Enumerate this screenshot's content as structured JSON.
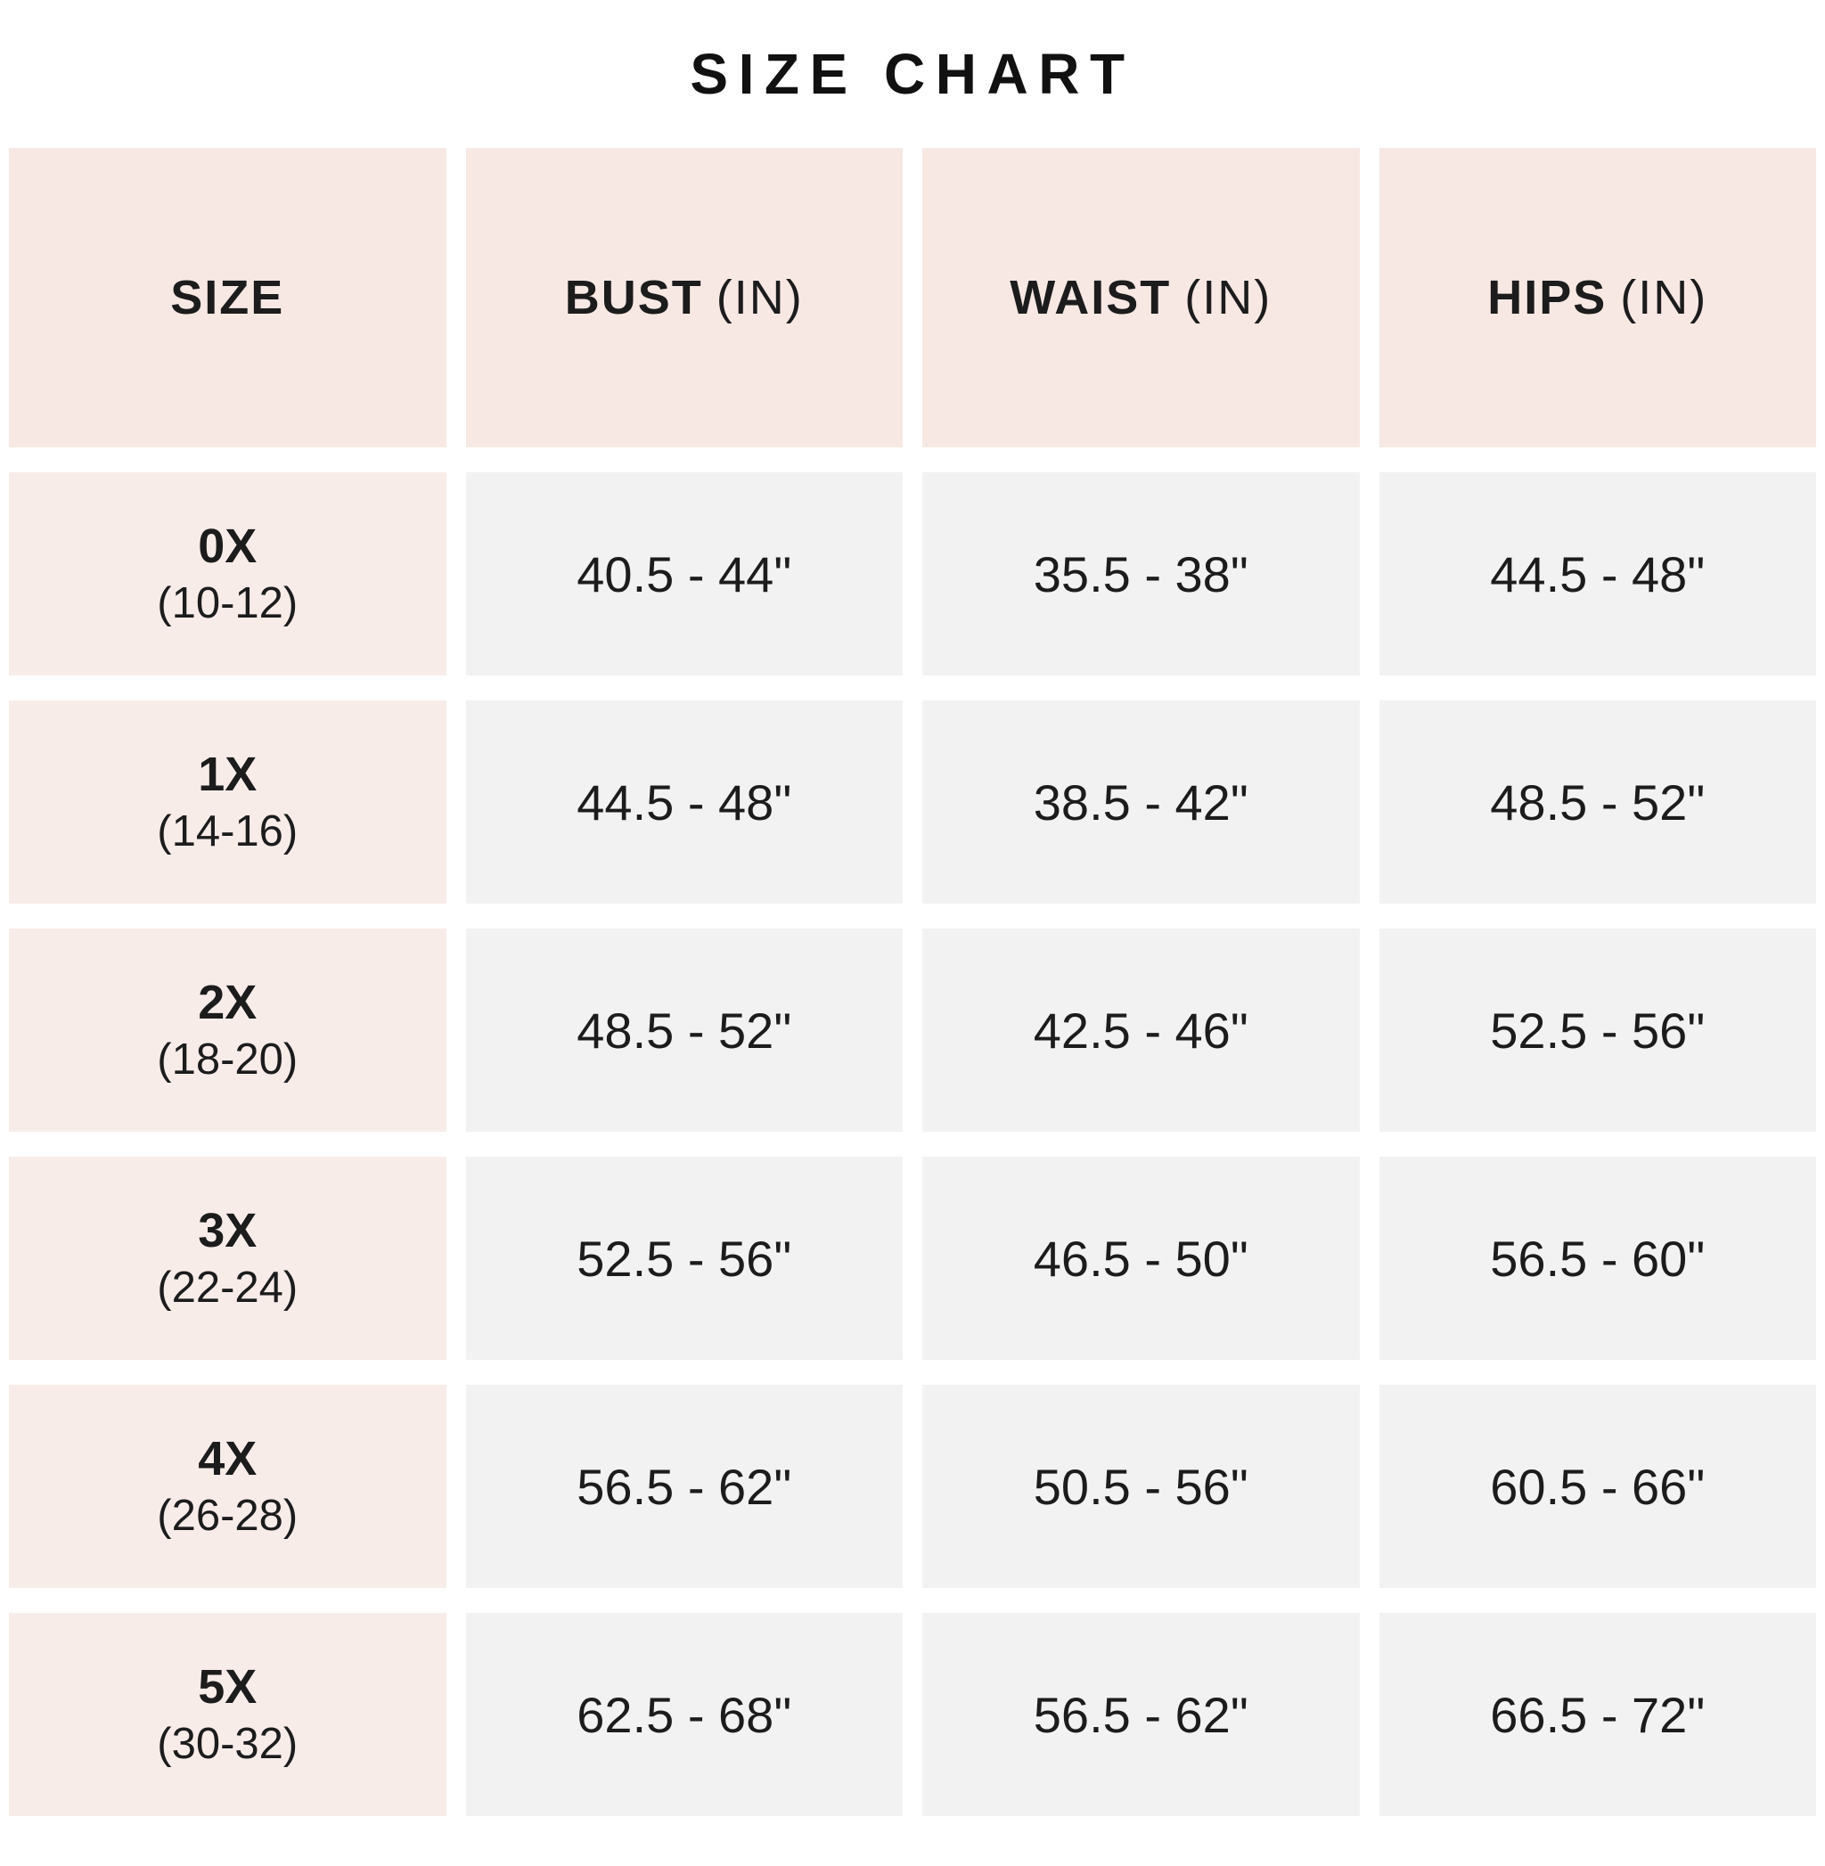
{
  "title": "SIZE CHART",
  "colors": {
    "header_bg": "#f7e8e4",
    "size_col_bg": "#f8ece9",
    "value_bg": "#f2f2f2",
    "text": "#1c1c1c"
  },
  "table": {
    "headers": [
      {
        "label": "SIZE",
        "unit": ""
      },
      {
        "label": "BUST",
        "unit": "(IN)"
      },
      {
        "label": "WAIST",
        "unit": "(IN)"
      },
      {
        "label": "HIPS",
        "unit": "(IN)"
      }
    ],
    "rows": [
      {
        "size": "0X",
        "range": "(10-12)",
        "bust": "40.5 - 44\"",
        "waist": "35.5 - 38\"",
        "hips": "44.5 - 48\""
      },
      {
        "size": "1X",
        "range": "(14-16)",
        "bust": "44.5 - 48\"",
        "waist": "38.5 - 42\"",
        "hips": "48.5 - 52\""
      },
      {
        "size": "2X",
        "range": "(18-20)",
        "bust": "48.5 - 52\"",
        "waist": "42.5 - 46\"",
        "hips": "52.5 - 56\""
      },
      {
        "size": "3X",
        "range": "(22-24)",
        "bust": "52.5 - 56\"",
        "waist": "46.5 - 50\"",
        "hips": "56.5 - 60\""
      },
      {
        "size": "4X",
        "range": "(26-28)",
        "bust": "56.5 - 62\"",
        "waist": "50.5 - 56\"",
        "hips": "60.5 - 66\""
      },
      {
        "size": "5X",
        "range": "(30-32)",
        "bust": "62.5 - 68\"",
        "waist": "56.5 - 62\"",
        "hips": "66.5 - 72\""
      }
    ]
  },
  "chart_data": {
    "type": "table",
    "title": "SIZE CHART",
    "columns": [
      "SIZE",
      "BUST (IN)",
      "WAIST (IN)",
      "HIPS (IN)"
    ],
    "rows": [
      [
        "0X (10-12)",
        "40.5 - 44\"",
        "35.5 - 38\"",
        "44.5 - 48\""
      ],
      [
        "1X (14-16)",
        "44.5 - 48\"",
        "38.5 - 42\"",
        "48.5 - 52\""
      ],
      [
        "2X (18-20)",
        "48.5 - 52\"",
        "42.5 - 46\"",
        "52.5 - 56\""
      ],
      [
        "3X (22-24)",
        "52.5 - 56\"",
        "46.5 - 50\"",
        "56.5 - 60\""
      ],
      [
        "4X (26-28)",
        "56.5 - 62\"",
        "50.5 - 56\"",
        "60.5 - 66\""
      ],
      [
        "5X (30-32)",
        "62.5 - 68\"",
        "56.5 - 62\"",
        "66.5 - 72\""
      ]
    ]
  }
}
